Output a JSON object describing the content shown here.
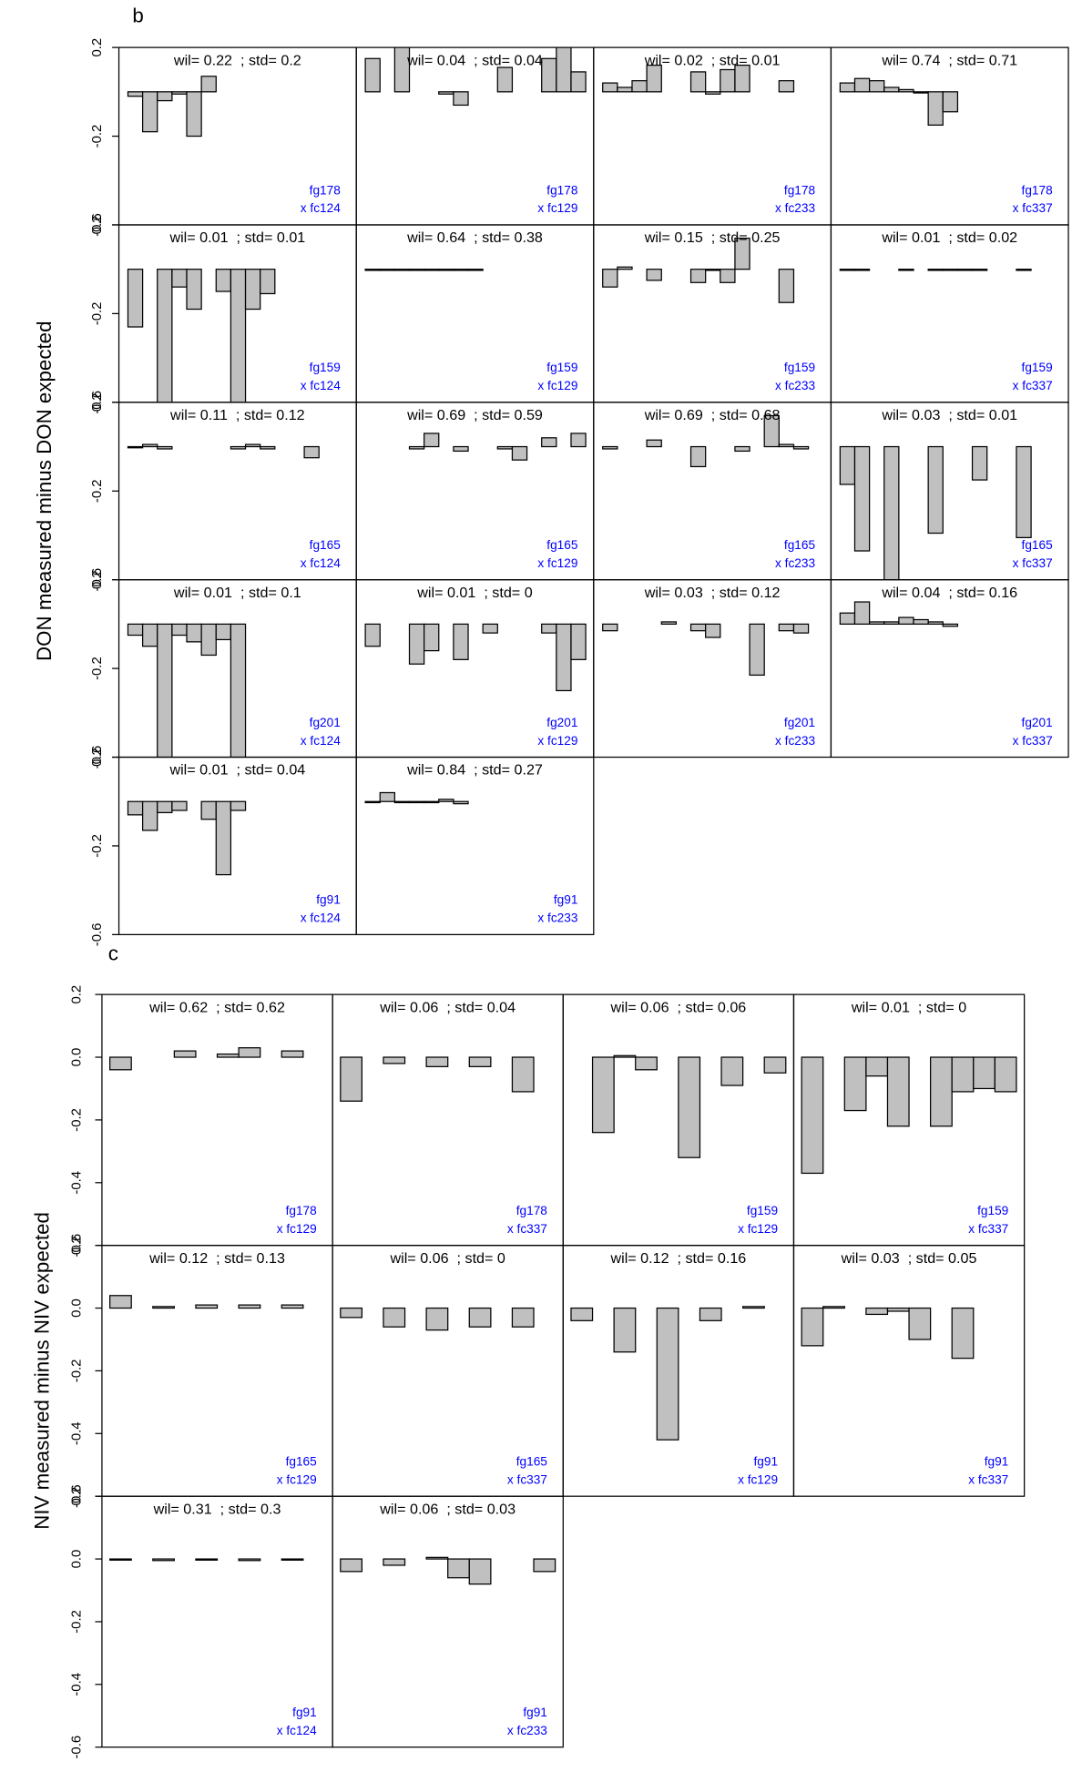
{
  "chart_data": [
    {
      "type": "bar",
      "label": "b",
      "ylabel": "DON measured minus DON expected",
      "ylim": [
        -0.6,
        0.2
      ],
      "yticks": [
        0.2,
        -0.2,
        -0.6
      ],
      "color": "#c0c0c0",
      "panels": [
        {
          "title": "wil= 0.22  ; std= 0.2",
          "fungus": "fg178",
          "strain": "x fc124",
          "values": [
            -0.02,
            -0.18,
            -0.04,
            -0.01,
            -0.2,
            0.07,
            null,
            null,
            null,
            null,
            null,
            null,
            null,
            null,
            null
          ]
        },
        {
          "title": "wil= 0.04  ; std= 0.04",
          "fungus": "fg178",
          "strain": "x fc129",
          "values": [
            0.15,
            null,
            0.22,
            null,
            null,
            -0.01,
            -0.06,
            null,
            null,
            0.11,
            null,
            null,
            0.15,
            0.25,
            0.09
          ]
        },
        {
          "title": "wil= 0.02  ; std= 0.01",
          "fungus": "fg178",
          "strain": "x fc233",
          "values": [
            0.04,
            0.02,
            0.05,
            0.12,
            null,
            null,
            0.09,
            -0.01,
            0.1,
            0.12,
            null,
            null,
            0.05,
            null,
            null
          ]
        },
        {
          "title": "wil= 0.74  ; std= 0.71",
          "fungus": "fg178",
          "strain": "x fc337",
          "values": [
            0.04,
            0.06,
            0.05,
            0.02,
            0.01,
            0,
            -0.15,
            -0.09,
            null,
            null,
            null,
            null,
            null,
            null,
            null
          ]
        },
        {
          "title": "wil= 0.01  ; std= 0.01",
          "fungus": "fg159",
          "strain": "x fc124",
          "values": [
            -0.26,
            null,
            -0.7,
            -0.08,
            -0.18,
            null,
            -0.1,
            -0.7,
            -0.18,
            -0.11,
            null,
            null,
            null,
            null,
            null
          ]
        },
        {
          "title": "wil= 0.64  ; std= 0.38",
          "fungus": "fg159",
          "strain": "x fc129",
          "values": [
            0,
            0,
            0,
            0,
            0,
            0,
            0,
            0,
            null,
            null,
            null,
            null,
            null,
            null,
            null
          ]
        },
        {
          "title": "wil= 0.15  ; std= 0.25",
          "fungus": "fg159",
          "strain": "x fc233",
          "values": [
            -0.08,
            0.01,
            null,
            -0.05,
            null,
            null,
            -0.06,
            0,
            -0.06,
            0.14,
            null,
            null,
            -0.15,
            null,
            null
          ]
        },
        {
          "title": "wil= 0.01  ; std= 0.02",
          "fungus": "fg159",
          "strain": "x fc337",
          "values": [
            0,
            0,
            null,
            null,
            0,
            null,
            0,
            0,
            0,
            0,
            null,
            null,
            0,
            null,
            null
          ]
        },
        {
          "title": "wil= 0.11  ; std= 0.12",
          "fungus": "fg165",
          "strain": "x fc124",
          "values": [
            0,
            0.01,
            -0.01,
            null,
            null,
            null,
            null,
            -0.01,
            0.01,
            -0.01,
            null,
            null,
            -0.05,
            null,
            null
          ]
        },
        {
          "title": "wil= 0.69  ; std= 0.59",
          "fungus": "fg165",
          "strain": "x fc129",
          "values": [
            null,
            null,
            null,
            -0.01,
            0.06,
            null,
            -0.02,
            null,
            null,
            -0.01,
            -0.06,
            null,
            0.04,
            null,
            0.06
          ]
        },
        {
          "title": "wil= 0.69  ; std= 0.68",
          "fungus": "fg165",
          "strain": "x fc233",
          "values": [
            -0.01,
            null,
            null,
            0.03,
            null,
            null,
            -0.09,
            null,
            null,
            -0.02,
            null,
            0.14,
            0.01,
            -0.01,
            null
          ]
        },
        {
          "title": "wil= 0.03  ; std= 0.01",
          "fungus": "fg165",
          "strain": "x fc337",
          "values": [
            -0.17,
            -0.47,
            null,
            -0.7,
            null,
            null,
            -0.39,
            null,
            null,
            -0.15,
            null,
            null,
            -0.41,
            null,
            null
          ]
        },
        {
          "title": "wil= 0.01  ; std= 0.1",
          "fungus": "fg201",
          "strain": "x fc124",
          "values": [
            -0.05,
            -0.1,
            -0.7,
            -0.05,
            -0.08,
            -0.14,
            -0.07,
            -0.7,
            null,
            null,
            null,
            null,
            null,
            null,
            null
          ]
        },
        {
          "title": "wil= 0.01  ; std= 0",
          "fungus": "fg201",
          "strain": "x fc129",
          "values": [
            -0.1,
            null,
            null,
            -0.18,
            -0.12,
            null,
            -0.16,
            null,
            -0.04,
            null,
            null,
            null,
            -0.04,
            -0.3,
            -0.16
          ]
        },
        {
          "title": "wil= 0.03  ; std= 0.12",
          "fungus": "fg201",
          "strain": "x fc233",
          "values": [
            -0.03,
            null,
            null,
            null,
            0.01,
            null,
            -0.03,
            -0.06,
            null,
            null,
            -0.23,
            null,
            -0.03,
            -0.04,
            null
          ]
        },
        {
          "title": "wil= 0.04  ; std= 0.16",
          "fungus": "fg201",
          "strain": "x fc337",
          "values": [
            0.05,
            0.1,
            0.01,
            0.01,
            0.03,
            0.02,
            0.01,
            -0.01,
            null,
            null,
            null,
            null,
            null,
            null,
            null
          ]
        },
        {
          "title": "wil= 0.01  ; std= 0.04",
          "fungus": "fg91",
          "strain": "x fc124",
          "values": [
            -0.06,
            -0.13,
            -0.05,
            -0.04,
            null,
            -0.08,
            -0.33,
            -0.04,
            null,
            null,
            null,
            null,
            null,
            null,
            null
          ]
        },
        {
          "title": "wil= 0.84  ; std= 0.27",
          "fungus": "fg91",
          "strain": "x fc233",
          "values": [
            0,
            0.04,
            0,
            0,
            0,
            0.01,
            -0.01,
            null,
            null,
            null,
            null,
            null,
            null,
            null,
            null
          ]
        }
      ]
    },
    {
      "type": "bar",
      "label": "c",
      "ylabel": "NIV measured minus NIV expected",
      "ylim": [
        -0.6,
        0.2
      ],
      "yticks": [
        0.2,
        {
          "value": 0,
          "label": "0.0"
        },
        -0.2,
        -0.4,
        -0.6
      ],
      "color": "#c0c0c0",
      "panels": [
        {
          "title": "wil= 0.62  ; std= 0.62",
          "fungus": "fg178",
          "strain": "x fc129",
          "values": [
            -0.04,
            null,
            null,
            0.02,
            null,
            0.01,
            0.03,
            null,
            0.02,
            null
          ]
        },
        {
          "title": "wil= 0.06  ; std= 0.04",
          "fungus": "fg178",
          "strain": "x fc337",
          "values": [
            -0.14,
            null,
            -0.02,
            null,
            -0.03,
            null,
            -0.03,
            null,
            -0.11,
            null
          ]
        },
        {
          "title": "wil= 0.06  ; std= 0.06",
          "fungus": "fg159",
          "strain": "x fc129",
          "values": [
            null,
            -0.24,
            0.005,
            -0.04,
            null,
            -0.32,
            null,
            -0.09,
            null,
            -0.05
          ]
        },
        {
          "title": "wil= 0.01  ; std= 0",
          "fungus": "fg159",
          "strain": "x fc337",
          "values": [
            -0.37,
            null,
            -0.17,
            -0.06,
            -0.22,
            null,
            -0.22,
            -0.11,
            -0.1,
            -0.11
          ]
        },
        {
          "title": "wil= 0.12  ; std= 0.13",
          "fungus": "fg165",
          "strain": "x fc129",
          "values": [
            0.04,
            null,
            0.005,
            null,
            0.01,
            null,
            0.01,
            null,
            0.01,
            null
          ]
        },
        {
          "title": "wil= 0.06  ; std= 0",
          "fungus": "fg165",
          "strain": "x fc337",
          "values": [
            -0.03,
            null,
            -0.06,
            null,
            -0.07,
            null,
            -0.06,
            null,
            -0.06,
            null
          ]
        },
        {
          "title": "wil= 0.12  ; std= 0.16",
          "fungus": "fg91",
          "strain": "x fc129",
          "values": [
            -0.04,
            null,
            -0.14,
            null,
            -0.42,
            null,
            -0.04,
            null,
            0.005,
            null
          ]
        },
        {
          "title": "wil= 0.03  ; std= 0.05",
          "fungus": "fg91",
          "strain": "x fc337",
          "values": [
            -0.12,
            0.005,
            null,
            -0.02,
            -0.01,
            -0.1,
            null,
            -0.16,
            null,
            null
          ]
        },
        {
          "title": "wil= 0.31  ; std= 0.3",
          "fungus": "fg91",
          "strain": "x fc124",
          "values": [
            0,
            null,
            -0.005,
            null,
            0,
            null,
            -0.005,
            null,
            0,
            null
          ]
        },
        {
          "title": "wil= 0.06  ; std= 0.03",
          "fungus": "fg91",
          "strain": "x fc233",
          "values": [
            -0.04,
            null,
            -0.02,
            null,
            0.005,
            -0.06,
            -0.08,
            null,
            null,
            -0.04
          ]
        }
      ]
    }
  ]
}
